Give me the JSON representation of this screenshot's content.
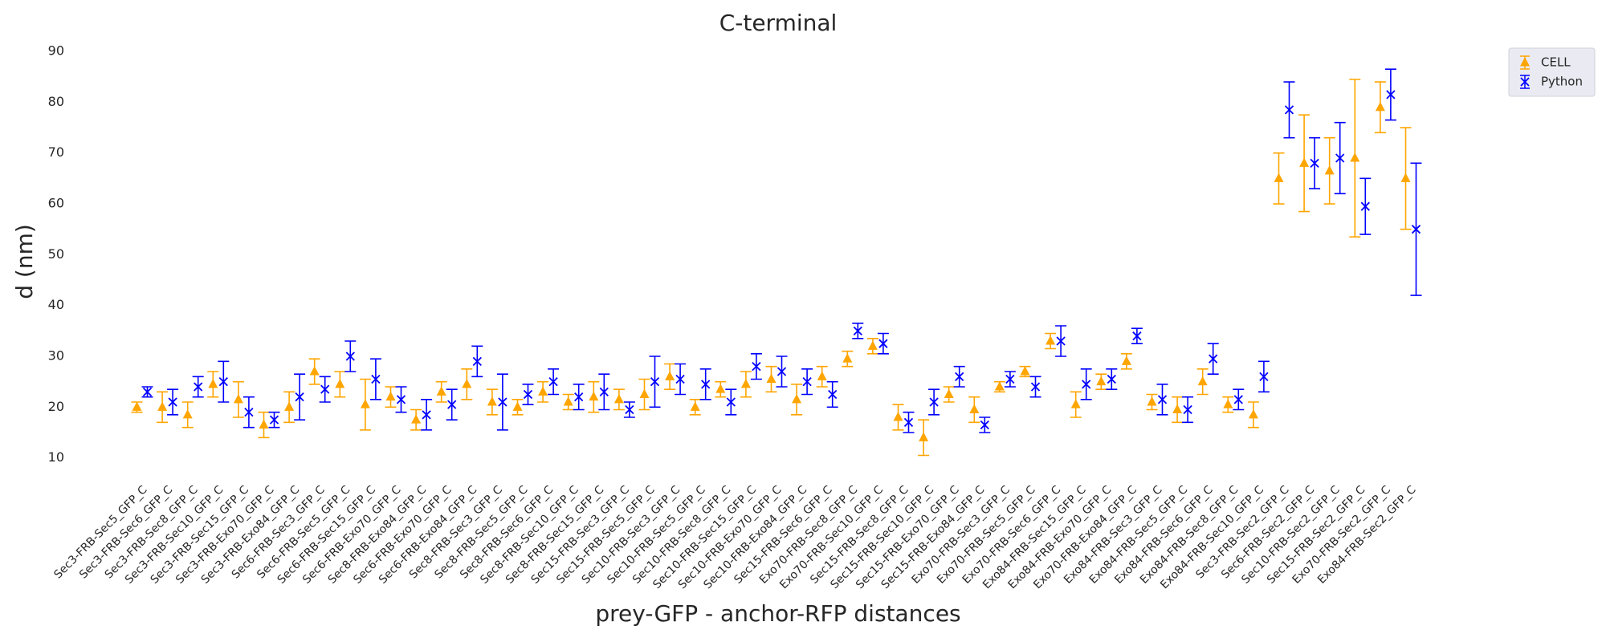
{
  "chart_data": {
    "type": "errorbar",
    "title": "C-terminal",
    "xlabel": "prey-GFP - anchor-RFP distances",
    "ylabel": "d (nm)",
    "categories": [
      "Sec3-FRB-Sec5_GFP_C",
      "Sec3-FRB-Sec6_GFP_C",
      "Sec3-FRB-Sec8_GFP_C",
      "Sec3-FRB-Sec10_GFP_C",
      "Sec3-FRB-Sec15_GFP_C",
      "Sec3-FRB-Exo70_GFP_C",
      "Sec3-FRB-Exo84_GFP_C",
      "Sec6-FRB-Sec3_GFP_C",
      "Sec6-FRB-Sec5_GFP_C",
      "Sec6-FRB-Sec15_GFP_C",
      "Sec6-FRB-Exo70_GFP_C",
      "Sec8-FRB-Exo84_GFP_C",
      "Sec6-FRB-Exo70_GFP_C",
      "Sec6-FRB-Exo84_GFP_C",
      "Sec8-FRB-Sec3_GFP_C",
      "Sec8-FRB-Sec5_GFP_C",
      "Sec8-FRB-Sec6_GFP_C",
      "Sec8-FRB-Sec10_GFP_C",
      "Sec8-FRB-Sec15_GFP_C",
      "Sec15-FRB-Sec3_GFP_C",
      "Sec15-FRB-Sec5_GFP_C",
      "Sec10-FRB-Sec3_GFP_C",
      "Sec10-FRB-Sec5_GFP_C",
      "Sec10-FRB-Sec8_GFP_C",
      "Sec10-FRB-Sec15_GFP_C",
      "Sec10-FRB-Exo70_GFP_C",
      "Sec10-FRB-Exo84_GFP_C",
      "Sec15-FRB-Sec6_GFP_C",
      "Exo70-FRB-Sec8_GFP_C",
      "Exo70-FRB-Sec10_GFP_C",
      "Sec15-FRB-Sec8_GFP_C",
      "Sec15-FRB-Sec10_GFP_C",
      "Sec15-FRB-Exo70_GFP_C",
      "Sec15-FRB-Exo84_GFP_C",
      "Exo70-FRB-Sec3_GFP_C",
      "Exo70-FRB-Sec5_GFP_C",
      "Exo70-FRB-Sec6_GFP_C",
      "Exo84-FRB-Sec15_GFP_C",
      "Exo84-FRB-Exo70_GFP_C",
      "Exo70-FRB-Exo84_GFP_C",
      "Exo84-FRB-Sec3_GFP_C",
      "Exo84-FRB-Sec5_GFP_C",
      "Exo84-FRB-Sec6_GFP_C",
      "Exo84-FRB-Sec8_GFP_C",
      "Exo84-FRB-Sec10_GFP_C",
      "Sec3-FRB-Sec2_GFP_C",
      "Sec6-FRB-Sec2_GFP_C",
      "Sec10-FRB-Sec2_GFP_C",
      "Sec15-FRB-Sec2_GFP_C",
      "Exo70-FRB-Sec2_GFP_C",
      "Exo84-FRB-Sec2_GFP_C"
    ],
    "series": [
      {
        "name": "CELL",
        "color": "#ffa500",
        "marker": "triangle",
        "values": [
          20,
          20,
          18.5,
          24.5,
          21.5,
          16.5,
          20,
          27,
          24.5,
          20.5,
          22,
          17.5,
          23,
          24.5,
          21,
          20,
          23,
          21,
          22,
          21.5,
          22.5,
          26,
          20,
          23.5,
          24.5,
          25.5,
          21.5,
          26,
          29.5,
          32,
          18,
          14,
          22.5,
          19.5,
          24,
          27,
          33,
          20.5,
          25,
          29,
          21,
          19.5,
          25,
          20.5,
          18.5,
          65,
          68,
          66.5,
          69,
          79,
          65
        ],
        "errors": [
          1,
          3,
          2.5,
          2.5,
          3.5,
          2.5,
          3,
          2.5,
          2.5,
          5,
          2,
          2,
          2,
          3,
          2.5,
          1.5,
          2,
          1.5,
          3,
          2,
          3,
          2.5,
          1.5,
          1.5,
          2.5,
          2.5,
          3,
          2,
          1.5,
          1.5,
          2.5,
          3.5,
          1.5,
          2.5,
          1,
          1,
          1.5,
          2.5,
          1.5,
          1.5,
          1.5,
          2.5,
          2.5,
          1.5,
          2.5,
          5,
          9.5,
          6.5,
          15.5,
          5,
          10
        ]
      },
      {
        "name": "Python",
        "color": "#0000ff",
        "marker": "x",
        "values": [
          23,
          21,
          24,
          25,
          19,
          17.5,
          22,
          23.5,
          30,
          25.5,
          21.5,
          18.5,
          20.5,
          29,
          21,
          22.5,
          25,
          22,
          23,
          19.5,
          25,
          25.5,
          24.5,
          21,
          28,
          27,
          25,
          22.5,
          35,
          32.5,
          17,
          21,
          26,
          16.5,
          25.5,
          24,
          33,
          24.5,
          25.5,
          34,
          21.5,
          19.5,
          29.5,
          21.5,
          26,
          78.5,
          68,
          69,
          59.5,
          81.5,
          55
        ],
        "errors": [
          1,
          2.5,
          2,
          4,
          3,
          1.5,
          4.5,
          2.5,
          3,
          4,
          2.5,
          3,
          3,
          3,
          5.5,
          2,
          2.5,
          2.5,
          3.5,
          1.5,
          5,
          3,
          3,
          2.5,
          2.5,
          3,
          2.5,
          2.5,
          1.5,
          2,
          2,
          2.5,
          2,
          1.5,
          1.5,
          2,
          3,
          3,
          2,
          1.5,
          3,
          2.5,
          3,
          2,
          3,
          5.5,
          5,
          7,
          5.5,
          5,
          13
        ]
      }
    ],
    "ylim": [
      6,
      91
    ],
    "yticks": [
      10,
      20,
      30,
      40,
      50,
      60,
      70,
      80,
      90
    ],
    "legend": "upper right"
  }
}
